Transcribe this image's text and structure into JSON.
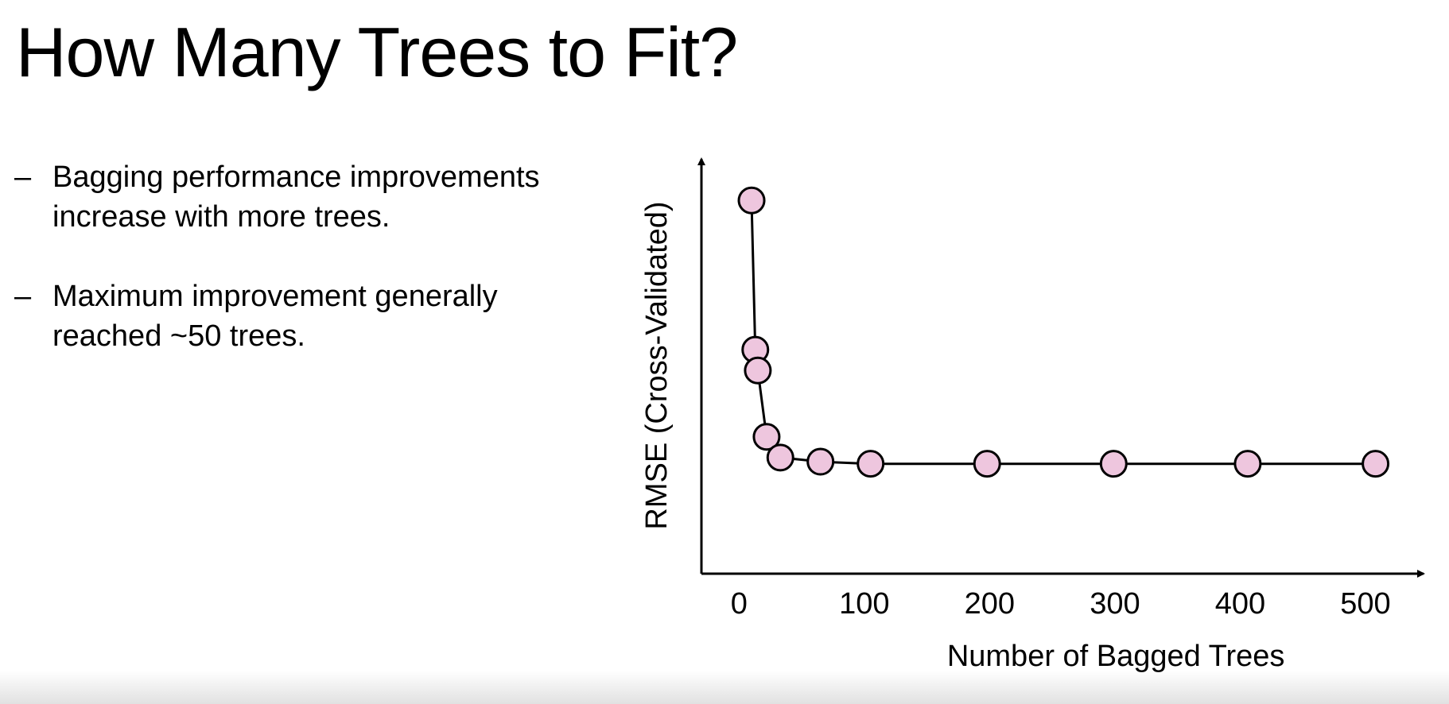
{
  "slide": {
    "title": "How Many Trees to Fit?",
    "bullets": [
      {
        "marker": "–",
        "lines": [
          "Bagging performance  improvements",
          "increase with more trees."
        ]
      },
      {
        "marker": "–",
        "lines": [
          "Maximum improvement generally",
          "reached ~50 trees."
        ]
      }
    ]
  },
  "chart_data": {
    "type": "line",
    "title": "",
    "xlabel": "Number of Bagged Trees",
    "ylabel": "RMSE (Cross-Validated)",
    "xlim": [
      -30,
      540
    ],
    "ylim": [
      0,
      1.0
    ],
    "xticks": [
      0,
      100,
      200,
      300,
      400,
      500
    ],
    "yticks": [],
    "grid": false,
    "legend": "none",
    "colors": {
      "marker_fill": "#eec6de",
      "marker_stroke": "#000000",
      "line": "#000000",
      "axis": "#000000"
    },
    "series": [
      {
        "x": [
          10,
          13,
          15,
          22,
          33,
          65,
          105,
          198,
          299,
          406,
          508
        ],
        "y": [
          0.9,
          0.54,
          0.49,
          0.33,
          0.28,
          0.27,
          0.265,
          0.265,
          0.265,
          0.265,
          0.265
        ]
      }
    ]
  }
}
